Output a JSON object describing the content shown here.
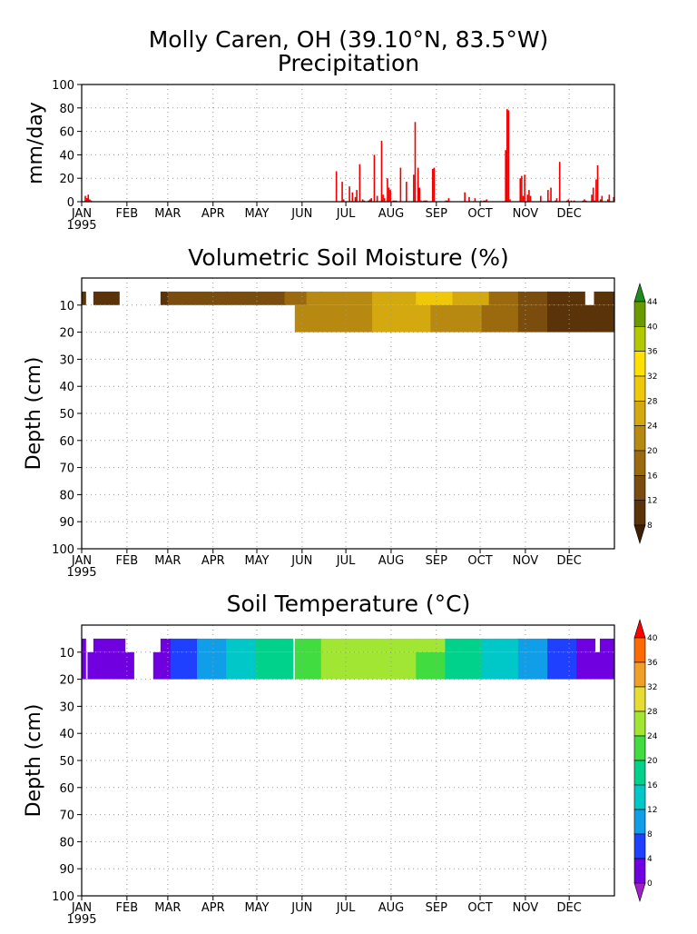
{
  "title": "Molly Caren, OH (39.10°N, 83.5°W)",
  "year_label": "1995",
  "months": [
    "JAN",
    "FEB",
    "MAR",
    "APR",
    "MAY",
    "JUN",
    "JUL",
    "AUG",
    "SEP",
    "OCT",
    "NOV",
    "DEC"
  ],
  "colors": {
    "precip": "#ee0000",
    "grid": "#999999",
    "axis": "#000000"
  },
  "chart_data": [
    {
      "type": "bar",
      "title": "Precipitation",
      "xlabel": "",
      "ylabel": "mm/day",
      "ylim": [
        0,
        100
      ],
      "yticks": [
        0,
        20,
        40,
        60,
        80,
        100
      ],
      "grid": true,
      "x_units": "day of year 1995",
      "x": [
        3,
        4,
        5,
        6,
        7,
        175,
        179,
        180,
        184,
        186,
        188,
        189,
        191,
        193,
        194,
        197,
        198,
        199,
        201,
        203,
        206,
        207,
        208,
        210,
        211,
        212,
        214,
        215,
        216,
        219,
        223,
        228,
        229,
        231,
        232,
        233,
        235,
        236,
        237,
        241,
        242,
        250,
        251,
        252,
        263,
        266,
        270,
        274,
        276,
        277,
        278,
        291,
        292,
        293,
        294,
        301,
        302,
        303,
        304,
        306,
        307,
        308,
        315,
        320,
        321,
        322,
        325,
        326,
        328,
        333,
        334,
        336,
        338,
        344,
        345,
        346,
        350,
        351,
        352,
        353,
        354,
        356,
        357,
        361,
        362,
        365
      ],
      "values": [
        5,
        3,
        6,
        2,
        1,
        26,
        17,
        2,
        13,
        8,
        4,
        10,
        32,
        2,
        1,
        1,
        2,
        3,
        40,
        5,
        52,
        6,
        3,
        20,
        12,
        10,
        1,
        1,
        1,
        29,
        17,
        23,
        68,
        29,
        12,
        1,
        1,
        1,
        1,
        28,
        29,
        1,
        1,
        3,
        8,
        4,
        3,
        1,
        1,
        1,
        2,
        44,
        79,
        78,
        2,
        20,
        22,
        5,
        23,
        6,
        10,
        5,
        5,
        10,
        1,
        12,
        1,
        3,
        34,
        1,
        2,
        1,
        1,
        1,
        2,
        1,
        6,
        12,
        1,
        19,
        31,
        2,
        5,
        2,
        6,
        4
      ]
    },
    {
      "type": "heatmap",
      "title": "Volumetric Soil Moisture (%)",
      "xlabel": "",
      "ylabel": "Depth (cm)",
      "ylim": [
        100,
        0
      ],
      "yticks": [
        10,
        20,
        30,
        40,
        50,
        60,
        70,
        80,
        90,
        100
      ],
      "grid": true,
      "colorbar_levels": [
        8,
        12,
        16,
        20,
        24,
        28,
        32,
        36,
        40,
        44
      ],
      "colorbar_colors": [
        "#3d2004",
        "#5a3309",
        "#7a4c0e",
        "#9b6a0f",
        "#b88910",
        "#d4a80f",
        "#f0c80a",
        "#ffe000",
        "#b4c800",
        "#6a9a00",
        "#1f8a1f"
      ],
      "layers": [
        {
          "depth": [
            5,
            10
          ],
          "segments": [
            {
              "from": 1,
              "to": 3,
              "value": 10
            },
            {
              "from": 9,
              "to": 26,
              "value": 9
            },
            {
              "from": 55,
              "to": 60,
              "value": 10
            },
            {
              "from": 60,
              "to": 100,
              "value": 12
            },
            {
              "from": 100,
              "to": 140,
              "value": 13
            },
            {
              "from": 140,
              "to": 155,
              "value": 18
            },
            {
              "from": 155,
              "to": 165,
              "value": 21
            },
            {
              "from": 165,
              "to": 200,
              "value": 23
            },
            {
              "from": 200,
              "to": 230,
              "value": 25
            },
            {
              "from": 230,
              "to": 255,
              "value": 28
            },
            {
              "from": 255,
              "to": 280,
              "value": 24
            },
            {
              "from": 280,
              "to": 300,
              "value": 19
            },
            {
              "from": 300,
              "to": 320,
              "value": 13
            },
            {
              "from": 320,
              "to": 345,
              "value": 10
            },
            {
              "from": 352,
              "to": 365,
              "value": 9
            }
          ]
        },
        {
          "depth": [
            10,
            20
          ],
          "segments": [
            {
              "from": 147,
              "to": 160,
              "value": 20
            },
            {
              "from": 160,
              "to": 200,
              "value": 22
            },
            {
              "from": 200,
              "to": 240,
              "value": 25
            },
            {
              "from": 240,
              "to": 275,
              "value": 23
            },
            {
              "from": 275,
              "to": 300,
              "value": 18
            },
            {
              "from": 300,
              "to": 320,
              "value": 12
            },
            {
              "from": 320,
              "to": 365,
              "value": 9
            }
          ]
        }
      ]
    },
    {
      "type": "heatmap",
      "title": "Soil Temperature (°C)",
      "xlabel": "",
      "ylabel": "Depth (cm)",
      "ylim": [
        100,
        0
      ],
      "yticks": [
        10,
        20,
        30,
        40,
        50,
        60,
        70,
        80,
        90,
        100
      ],
      "grid": true,
      "colorbar_levels": [
        0,
        4,
        8,
        12,
        16,
        20,
        24,
        28,
        32,
        36,
        40
      ],
      "colorbar_colors": [
        "#a020c8",
        "#7000e0",
        "#2040ff",
        "#109ee8",
        "#00c8c8",
        "#00d28c",
        "#40dc40",
        "#a0e632",
        "#e6dc32",
        "#f0a028",
        "#ff6a00",
        "#ff0000"
      ],
      "layers": [
        {
          "depth": [
            5,
            10
          ],
          "segments": [
            {
              "from": 1,
              "to": 3,
              "value": 2
            },
            {
              "from": 9,
              "to": 30,
              "value": 2
            },
            {
              "from": 55,
              "to": 62,
              "value": 1
            },
            {
              "from": 62,
              "to": 80,
              "value": 5
            },
            {
              "from": 80,
              "to": 100,
              "value": 8
            },
            {
              "from": 100,
              "to": 120,
              "value": 13
            },
            {
              "from": 120,
              "to": 145,
              "value": 16
            },
            {
              "from": 147,
              "to": 165,
              "value": 21
            },
            {
              "from": 165,
              "to": 200,
              "value": 24
            },
            {
              "from": 200,
              "to": 230,
              "value": 26
            },
            {
              "from": 230,
              "to": 250,
              "value": 24
            },
            {
              "from": 250,
              "to": 275,
              "value": 19
            },
            {
              "from": 275,
              "to": 300,
              "value": 15
            },
            {
              "from": 300,
              "to": 320,
              "value": 11
            },
            {
              "from": 320,
              "to": 340,
              "value": 6
            },
            {
              "from": 340,
              "to": 352,
              "value": 3
            },
            {
              "from": 356,
              "to": 365,
              "value": 2
            }
          ]
        },
        {
          "depth": [
            10,
            20
          ],
          "segments": [
            {
              "from": 1,
              "to": 3,
              "value": 2
            },
            {
              "from": 5,
              "to": 36,
              "value": 2
            },
            {
              "from": 50,
              "to": 62,
              "value": 1
            },
            {
              "from": 62,
              "to": 80,
              "value": 5
            },
            {
              "from": 80,
              "to": 100,
              "value": 8
            },
            {
              "from": 100,
              "to": 120,
              "value": 13
            },
            {
              "from": 120,
              "to": 145,
              "value": 16
            },
            {
              "from": 147,
              "to": 165,
              "value": 20
            },
            {
              "from": 165,
              "to": 200,
              "value": 24
            },
            {
              "from": 200,
              "to": 230,
              "value": 25
            },
            {
              "from": 230,
              "to": 250,
              "value": 23
            },
            {
              "from": 250,
              "to": 275,
              "value": 19
            },
            {
              "from": 275,
              "to": 300,
              "value": 15
            },
            {
              "from": 300,
              "to": 320,
              "value": 11
            },
            {
              "from": 320,
              "to": 340,
              "value": 6
            },
            {
              "from": 340,
              "to": 365,
              "value": 2
            }
          ]
        }
      ]
    }
  ]
}
